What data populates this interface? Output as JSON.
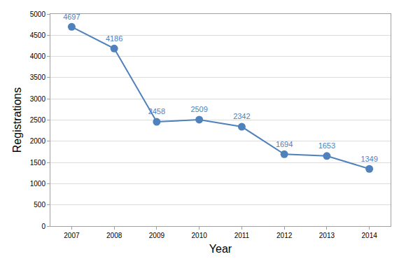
{
  "chart_data": {
    "type": "line",
    "categories": [
      "2007",
      "2008",
      "2009",
      "2010",
      "2011",
      "2012",
      "2013",
      "2014"
    ],
    "values": [
      4697,
      4186,
      2458,
      2509,
      2342,
      1694,
      1653,
      1349
    ],
    "color": "#4f81bd",
    "xlabel": "Year",
    "ylabel": "Registrations",
    "ylim": [
      0,
      5000
    ],
    "yticks": [
      0,
      500,
      1000,
      1500,
      2000,
      2500,
      3000,
      3500,
      4000,
      4500,
      5000
    ],
    "grid": true,
    "data_labels": true,
    "marker": "circle"
  }
}
